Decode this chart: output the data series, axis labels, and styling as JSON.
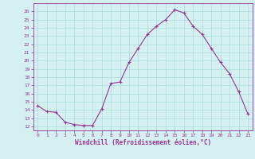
{
  "x": [
    0,
    1,
    2,
    3,
    4,
    5,
    6,
    7,
    8,
    9,
    10,
    11,
    12,
    13,
    14,
    15,
    16,
    17,
    18,
    19,
    20,
    21,
    22,
    23
  ],
  "y": [
    14.5,
    13.8,
    13.7,
    12.5,
    12.2,
    12.1,
    12.1,
    14.1,
    17.2,
    17.4,
    19.8,
    21.5,
    23.2,
    24.2,
    25.0,
    26.2,
    25.8,
    24.2,
    23.2,
    21.5,
    19.8,
    18.4,
    16.2,
    13.5
  ],
  "line_color": "#993399",
  "marker": "+",
  "marker_color": "#993399",
  "background_color": "#d4f0f0",
  "grid_color": "#aadddd",
  "xlabel": "Windchill (Refroidissement éolien,°C)",
  "xlabel_color": "#993399",
  "tick_color": "#993399",
  "ylim": [
    11.5,
    27
  ],
  "xlim": [
    -0.5,
    23.5
  ],
  "yticks": [
    12,
    13,
    14,
    15,
    16,
    17,
    18,
    19,
    20,
    21,
    22,
    23,
    24,
    25,
    26
  ],
  "xticks": [
    0,
    1,
    2,
    3,
    4,
    5,
    6,
    7,
    8,
    9,
    10,
    11,
    12,
    13,
    14,
    15,
    16,
    17,
    18,
    19,
    20,
    21,
    22,
    23
  ]
}
